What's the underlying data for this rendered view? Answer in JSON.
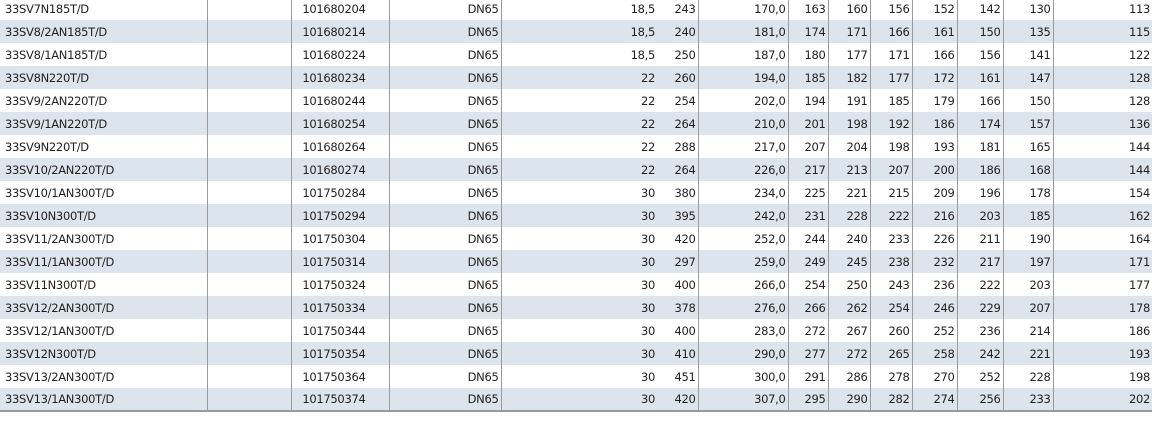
{
  "table": {
    "rows": [
      [
        "33SV7N185T/D",
        "",
        "101680204",
        "DN65",
        "18,5",
        "243",
        "170,0",
        "163",
        "160",
        "156",
        "152",
        "142",
        "130",
        "113"
      ],
      [
        "33SV8/2AN185T/D",
        "",
        "101680214",
        "DN65",
        "18,5",
        "240",
        "181,0",
        "174",
        "171",
        "166",
        "161",
        "150",
        "135",
        "115"
      ],
      [
        "33SV8/1AN185T/D",
        "",
        "101680224",
        "DN65",
        "18,5",
        "250",
        "187,0",
        "180",
        "177",
        "171",
        "166",
        "156",
        "141",
        "122"
      ],
      [
        "33SV8N220T/D",
        "",
        "101680234",
        "DN65",
        "22",
        "260",
        "194,0",
        "185",
        "182",
        "177",
        "172",
        "161",
        "147",
        "128"
      ],
      [
        "33SV9/2AN220T/D",
        "",
        "101680244",
        "DN65",
        "22",
        "254",
        "202,0",
        "194",
        "191",
        "185",
        "179",
        "166",
        "150",
        "128"
      ],
      [
        "33SV9/1AN220T/D",
        "",
        "101680254",
        "DN65",
        "22",
        "264",
        "210,0",
        "201",
        "198",
        "192",
        "186",
        "174",
        "157",
        "136"
      ],
      [
        "33SV9N220T/D",
        "",
        "101680264",
        "DN65",
        "22",
        "288",
        "217,0",
        "207",
        "204",
        "198",
        "193",
        "181",
        "165",
        "144"
      ],
      [
        "33SV10/2AN220T/D",
        "",
        "101680274",
        "DN65",
        "22",
        "264",
        "226,0",
        "217",
        "213",
        "207",
        "200",
        "186",
        "168",
        "144"
      ],
      [
        "33SV10/1AN300T/D",
        "",
        "101750284",
        "DN65",
        "30",
        "380",
        "234,0",
        "225",
        "221",
        "215",
        "209",
        "196",
        "178",
        "154"
      ],
      [
        "33SV10N300T/D",
        "",
        "101750294",
        "DN65",
        "30",
        "395",
        "242,0",
        "231",
        "228",
        "222",
        "216",
        "203",
        "185",
        "162"
      ],
      [
        "33SV11/2AN300T/D",
        "",
        "101750304",
        "DN65",
        "30",
        "420",
        "252,0",
        "244",
        "240",
        "233",
        "226",
        "211",
        "190",
        "164"
      ],
      [
        "33SV11/1AN300T/D",
        "",
        "101750314",
        "DN65",
        "30",
        "297",
        "259,0",
        "249",
        "245",
        "238",
        "232",
        "217",
        "197",
        "171"
      ],
      [
        "33SV11N300T/D",
        "",
        "101750324",
        "DN65",
        "30",
        "400",
        "266,0",
        "254",
        "250",
        "243",
        "236",
        "222",
        "203",
        "177"
      ],
      [
        "33SV12/2AN300T/D",
        "",
        "101750334",
        "DN65",
        "30",
        "378",
        "276,0",
        "266",
        "262",
        "254",
        "246",
        "229",
        "207",
        "178"
      ],
      [
        "33SV12/1AN300T/D",
        "",
        "101750344",
        "DN65",
        "30",
        "400",
        "283,0",
        "272",
        "267",
        "260",
        "252",
        "236",
        "214",
        "186"
      ],
      [
        "33SV12N300T/D",
        "",
        "101750354",
        "DN65",
        "30",
        "410",
        "290,0",
        "277",
        "272",
        "265",
        "258",
        "242",
        "221",
        "193"
      ],
      [
        "33SV13/2AN300T/D",
        "",
        "101750364",
        "DN65",
        "30",
        "451",
        "300,0",
        "291",
        "286",
        "278",
        "270",
        "252",
        "228",
        "198"
      ],
      [
        "33SV13/1AN300T/D",
        "",
        "101750374",
        "DN65",
        "30",
        "420",
        "307,0",
        "295",
        "290",
        "282",
        "274",
        "256",
        "233",
        "202"
      ]
    ]
  },
  "colors": {
    "row_stripe": "#dce4ee",
    "grid": "#9a9a9a",
    "text": "#231f20"
  }
}
